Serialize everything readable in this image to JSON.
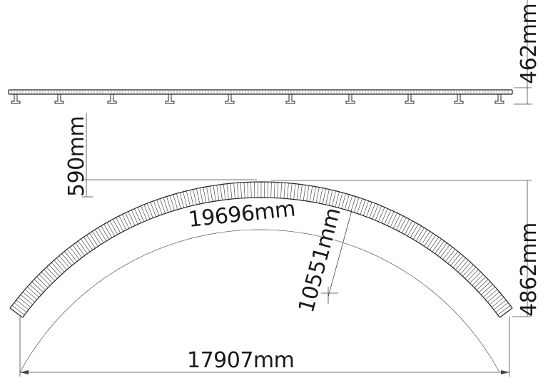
{
  "dimensions": {
    "panel_thickness": "462mm",
    "rise_offset": "590mm",
    "arc_length": "19696mm",
    "radius": "10551mm",
    "arch_height": "4862mm",
    "span": "17907mm"
  }
}
